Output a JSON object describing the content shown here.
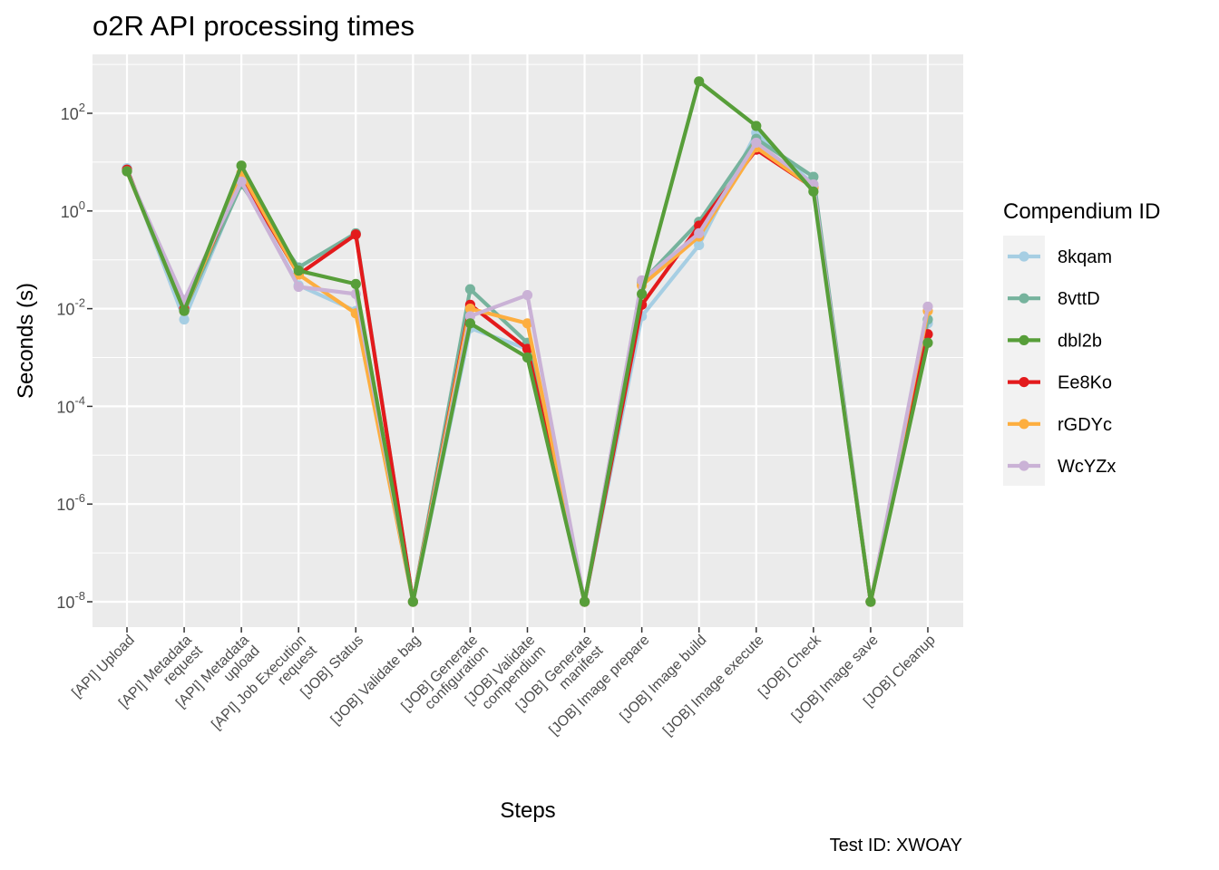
{
  "chart_data": {
    "type": "line",
    "title": "o2R API processing times",
    "xlabel": "Steps",
    "ylabel": "Seconds (s)",
    "y_scale": "log10",
    "ylim": [
      1e-09,
      5000
    ],
    "y_ticks": [
      {
        "base": "10",
        "exp": "2",
        "value": 100
      },
      {
        "base": "10",
        "exp": "0",
        "value": 1
      },
      {
        "base": "10",
        "exp": "-2",
        "value": 0.01
      },
      {
        "base": "10",
        "exp": "-4",
        "value": 0.0001
      },
      {
        "base": "10",
        "exp": "-6",
        "value": 1e-06
      },
      {
        "base": "10",
        "exp": "-8",
        "value": 1e-08
      }
    ],
    "categories": [
      [
        "[API] Upload"
      ],
      [
        "[API] Metadata",
        "request"
      ],
      [
        "[API] Metadata",
        "upload"
      ],
      [
        "[API] Job Execution",
        "request"
      ],
      [
        "[JOB] Status"
      ],
      [
        "[JOB] Validate bag"
      ],
      [
        "[JOB] Generate",
        "configuration"
      ],
      [
        "[JOB] Validate",
        "compendium"
      ],
      [
        "[JOB] Generate",
        "manifest"
      ],
      [
        "[JOB] Image prepare"
      ],
      [
        "[JOB] Image build"
      ],
      [
        "[JOB] Image execute"
      ],
      [
        "[JOB] Check"
      ],
      [
        "[JOB] Image save"
      ],
      [
        "[JOB] Cleanup"
      ]
    ],
    "legend_title": "Compendium ID",
    "legend_position": "right",
    "grid": true,
    "caption": "Test ID: XWOAY",
    "series": [
      {
        "name": "8kqam",
        "color": "#a6cee3",
        "values": [
          7.5,
          0.006,
          4,
          0.03,
          0.009,
          1e-08,
          0.004,
          0.0015,
          1e-08,
          0.007,
          0.2,
          40,
          3.5,
          1e-08,
          0.005
        ]
      },
      {
        "name": "8vttD",
        "color": "#76b39d",
        "values": [
          7,
          0.009,
          3.5,
          0.07,
          0.35,
          1e-08,
          0.025,
          0.002,
          1e-08,
          0.035,
          0.6,
          30,
          5,
          1e-08,
          0.006
        ]
      },
      {
        "name": "Ee8Ko",
        "color": "#e31a1c",
        "values": [
          7,
          0.01,
          5,
          0.05,
          0.33,
          1e-08,
          0.012,
          0.0015,
          1e-08,
          0.012,
          0.5,
          18,
          3,
          1e-08,
          0.003
        ]
      },
      {
        "name": "rGDYc",
        "color": "#fdae3f",
        "values": [
          6.5,
          0.009,
          6,
          0.05,
          0.008,
          1e-08,
          0.01,
          0.005,
          1e-08,
          0.03,
          0.3,
          20,
          3,
          1e-08,
          0.009
        ]
      },
      {
        "name": "WcYZx",
        "color": "#cab2d6",
        "values": [
          6.5,
          0.015,
          4,
          0.028,
          0.02,
          1e-08,
          0.007,
          0.019,
          1e-08,
          0.038,
          0.35,
          25,
          3.5,
          1e-08,
          0.011
        ]
      },
      {
        "name": "dbl2b",
        "color": "#579e39",
        "values": [
          6.5,
          0.009,
          8.5,
          0.06,
          0.032,
          1e-08,
          0.005,
          0.001,
          1e-08,
          0.02,
          450,
          55,
          2.5,
          1e-08,
          0.002
        ]
      }
    ],
    "legend_order": [
      "8kqam",
      "8vttD",
      "dbl2b",
      "Ee8Ko",
      "rGDYc",
      "WcYZx"
    ]
  }
}
